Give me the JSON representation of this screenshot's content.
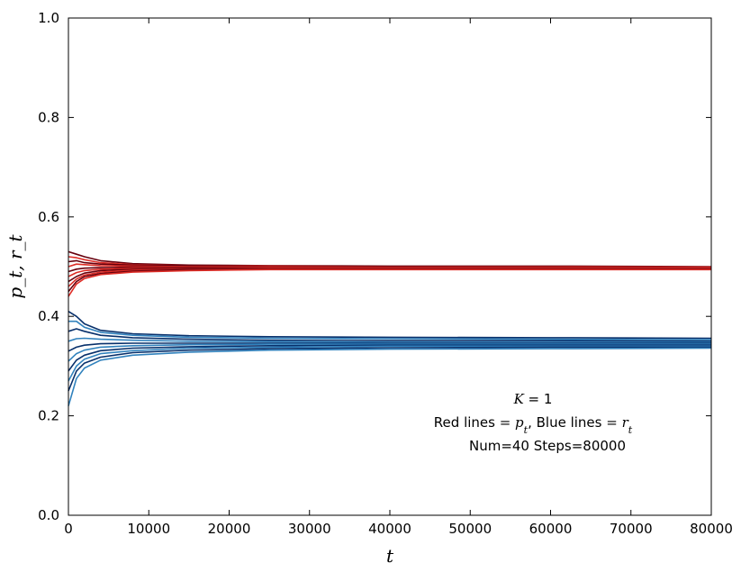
{
  "chart_data": {
    "type": "line",
    "title": "",
    "xlabel": "t",
    "ylabel": "p_t, r_t",
    "xlim": [
      0,
      80000
    ],
    "ylim": [
      0.0,
      1.0
    ],
    "x_ticks": [
      0,
      10000,
      20000,
      30000,
      40000,
      50000,
      60000,
      70000,
      80000
    ],
    "x_tick_labels": [
      "0",
      "10000",
      "20000",
      "30000",
      "40000",
      "50000",
      "60000",
      "70000",
      "80000"
    ],
    "y_ticks": [
      0.0,
      0.2,
      0.4,
      0.6,
      0.8,
      1.0
    ],
    "y_tick_labels": [
      "0.0",
      "0.2",
      "0.4",
      "0.6",
      "0.8",
      "1.0"
    ],
    "grid": false,
    "annotation": {
      "line1_math": "K",
      "line1_eq": " = 1",
      "line2_pre": "Red lines ",
      "line2_p": "= p",
      "line2_p_sub": "t",
      "line2_mid": ",   Blue lines ",
      "line2_r": "= r",
      "line2_r_sub": "t",
      "line3": "Num=40 Steps=80000"
    },
    "colors": {
      "red_ramp": [
        "#fcbba1",
        "#fb6a4a",
        "#de2d26",
        "#a50f15",
        "#67000d"
      ],
      "blue_ramp": [
        "#c6dbef",
        "#6baed6",
        "#3182bd",
        "#08519c",
        "#08306b"
      ]
    },
    "series_groups": [
      {
        "group": "p_t",
        "color_family": "red",
        "x": [
          0,
          1000,
          2000,
          4000,
          8000,
          15000,
          25000,
          40000,
          60000,
          80000
        ],
        "lines": [
          [
            0.53,
            0.525,
            0.52,
            0.512,
            0.506,
            0.503,
            0.502,
            0.501,
            0.501,
            0.5
          ],
          [
            0.52,
            0.518,
            0.514,
            0.508,
            0.504,
            0.502,
            0.501,
            0.5,
            0.5,
            0.499
          ],
          [
            0.51,
            0.512,
            0.508,
            0.505,
            0.503,
            0.502,
            0.5,
            0.5,
            0.499,
            0.499
          ],
          [
            0.5,
            0.505,
            0.504,
            0.502,
            0.501,
            0.5,
            0.5,
            0.499,
            0.499,
            0.499
          ],
          [
            0.49,
            0.495,
            0.497,
            0.498,
            0.499,
            0.499,
            0.499,
            0.499,
            0.499,
            0.498
          ],
          [
            0.48,
            0.488,
            0.492,
            0.495,
            0.497,
            0.498,
            0.498,
            0.498,
            0.498,
            0.498
          ],
          [
            0.47,
            0.48,
            0.487,
            0.492,
            0.495,
            0.497,
            0.497,
            0.497,
            0.497,
            0.497
          ],
          [
            0.46,
            0.475,
            0.483,
            0.489,
            0.493,
            0.495,
            0.496,
            0.496,
            0.496,
            0.496
          ],
          [
            0.45,
            0.47,
            0.48,
            0.486,
            0.491,
            0.494,
            0.495,
            0.495,
            0.495,
            0.495
          ],
          [
            0.44,
            0.465,
            0.476,
            0.484,
            0.489,
            0.492,
            0.494,
            0.494,
            0.494,
            0.494
          ]
        ]
      },
      {
        "group": "r_t",
        "color_family": "blue",
        "x": [
          0,
          1000,
          2000,
          4000,
          8000,
          15000,
          25000,
          40000,
          60000,
          80000
        ],
        "lines": [
          [
            0.41,
            0.4,
            0.385,
            0.372,
            0.365,
            0.361,
            0.359,
            0.358,
            0.357,
            0.356
          ],
          [
            0.39,
            0.39,
            0.378,
            0.368,
            0.362,
            0.358,
            0.356,
            0.355,
            0.354,
            0.353
          ],
          [
            0.37,
            0.375,
            0.37,
            0.362,
            0.357,
            0.354,
            0.352,
            0.351,
            0.351,
            0.35
          ],
          [
            0.35,
            0.355,
            0.356,
            0.354,
            0.352,
            0.35,
            0.349,
            0.348,
            0.348,
            0.348
          ],
          [
            0.33,
            0.338,
            0.342,
            0.345,
            0.346,
            0.346,
            0.346,
            0.346,
            0.346,
            0.346
          ],
          [
            0.31,
            0.325,
            0.332,
            0.338,
            0.341,
            0.343,
            0.344,
            0.344,
            0.344,
            0.344
          ],
          [
            0.29,
            0.312,
            0.322,
            0.331,
            0.336,
            0.339,
            0.341,
            0.342,
            0.342,
            0.342
          ],
          [
            0.27,
            0.3,
            0.314,
            0.325,
            0.331,
            0.336,
            0.338,
            0.34,
            0.34,
            0.34
          ],
          [
            0.25,
            0.29,
            0.306,
            0.318,
            0.327,
            0.332,
            0.335,
            0.337,
            0.338,
            0.338
          ],
          [
            0.22,
            0.275,
            0.296,
            0.312,
            0.322,
            0.328,
            0.332,
            0.334,
            0.335,
            0.336
          ]
        ]
      }
    ]
  }
}
